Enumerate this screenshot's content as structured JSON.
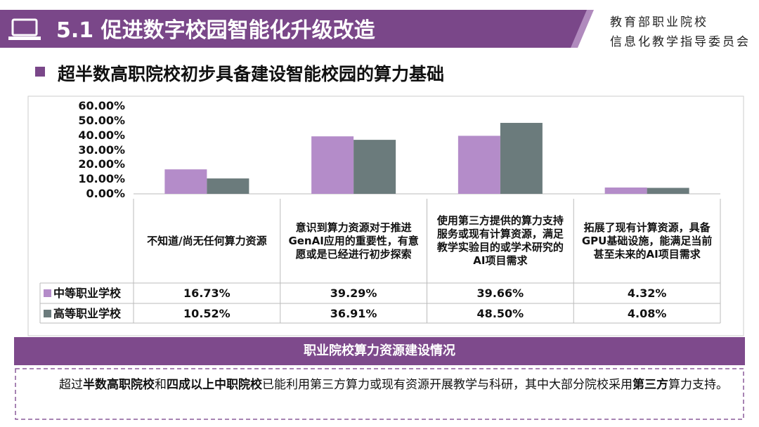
{
  "header": {
    "title": "5.1 促进数字校园智能化升级改造",
    "org_line1": "教育部职业院校",
    "org_line2": "信息化教学指导委员会"
  },
  "subtitle": "超半数高职院校初步具备建设智能校园的算力基础",
  "chart_data": {
    "type": "bar",
    "categories": [
      "不知道/尚无任何算力资源",
      "意识到算力资源对于推进GenAI应用的重要性，有意愿或是已经进行初步探索",
      "使用第三方提供的算力支持服务或现有计算资源，满足教学实验目的或学术研究的AI项目需求",
      "拓展了现有计算资源，具备GPU基础设施，能满足当前甚至未来的AI项目需求"
    ],
    "series": [
      {
        "name": "中等职业学校",
        "color": "#b48cc9",
        "values": [
          16.73,
          39.29,
          39.66,
          4.32
        ],
        "value_labels": [
          "16.73%",
          "39.29%",
          "39.66%",
          "4.32%"
        ]
      },
      {
        "name": "高等职业学校",
        "color": "#6b7b7c",
        "values": [
          10.52,
          36.91,
          48.5,
          4.08
        ],
        "value_labels": [
          "10.52%",
          "36.91%",
          "48.50%",
          "4.08%"
        ]
      }
    ],
    "ylim": [
      0,
      60
    ],
    "yticks": [
      {
        "value": 0,
        "label": "0.00%"
      },
      {
        "value": 10,
        "label": "10.00%"
      },
      {
        "value": 20,
        "label": "20.00%"
      },
      {
        "value": 30,
        "label": "30.00%"
      },
      {
        "value": 40,
        "label": "40.00%"
      },
      {
        "value": 50,
        "label": "50.00%"
      },
      {
        "value": 60,
        "label": "60.00%"
      }
    ],
    "caption": "职业院校算力资源建设情况"
  },
  "summary": [
    {
      "text": "超过",
      "bold": false
    },
    {
      "text": "半数高职院校",
      "bold": true
    },
    {
      "text": "和",
      "bold": false
    },
    {
      "text": "四成以上中职院校",
      "bold": true
    },
    {
      "text": "已能利用第三方算力或现有资源开展教学与科研，其中大部分院校采用",
      "bold": false
    },
    {
      "text": "第三方",
      "bold": true
    },
    {
      "text": "算力支持。",
      "bold": false
    }
  ]
}
